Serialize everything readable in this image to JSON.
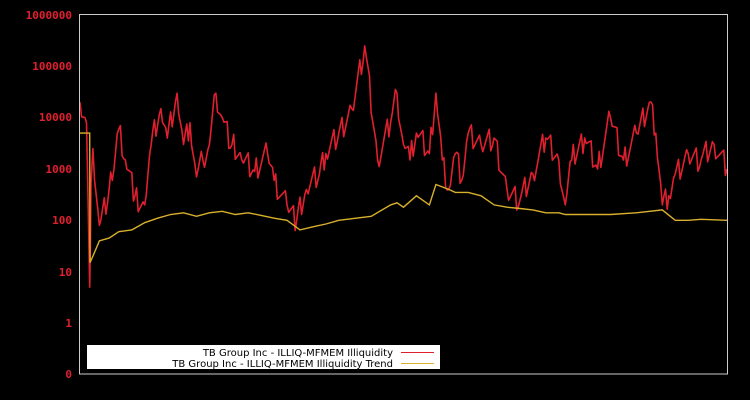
{
  "chart_data": {
    "type": "line",
    "title": "",
    "xlabel": "",
    "ylabel": "",
    "yscale": "log",
    "ylim": [
      0,
      1000000
    ],
    "y_tick_labels": [
      "1000000",
      "100000",
      "10000",
      "1000",
      "100",
      "10",
      "1",
      "0"
    ],
    "x_tick_labels": [],
    "grid": false,
    "legend_position": "lower-left",
    "colors": {
      "background": "#000000",
      "frame": "#cccccc",
      "tick_label": "#e0202e",
      "legend_bg": "#ffffff"
    },
    "series": [
      {
        "name": "TB Group Inc - ILLIQ-MFMEM Illiquidity",
        "color": "#e0202e",
        "x_fraction": [
          0.0,
          0.01,
          0.015,
          0.017,
          0.02,
          0.03,
          0.045,
          0.05,
          0.06,
          0.07,
          0.085,
          0.1,
          0.11,
          0.125,
          0.135,
          0.15,
          0.16,
          0.17,
          0.18,
          0.19,
          0.2,
          0.21,
          0.22,
          0.235,
          0.25,
          0.27,
          0.29,
          0.3,
          0.32,
          0.335,
          0.35,
          0.37,
          0.38,
          0.4,
          0.42,
          0.44,
          0.46,
          0.48,
          0.49,
          0.5,
          0.51,
          0.52,
          0.54,
          0.55,
          0.56,
          0.57,
          0.58,
          0.59,
          0.6,
          0.62,
          0.64,
          0.66,
          0.68,
          0.7,
          0.72,
          0.74,
          0.75,
          0.76,
          0.78,
          0.8,
          0.82,
          0.84,
          0.86,
          0.88,
          0.89,
          0.9,
          0.91,
          0.92,
          0.94,
          0.96,
          0.98,
          1.0
        ],
        "values": [
          20000,
          8000,
          5,
          500,
          2500,
          80,
          400,
          600,
          6000,
          1500,
          300,
          200,
          3000,
          15000,
          4000,
          30000,
          3000,
          8000,
          700,
          1500,
          3000,
          30000,
          10000,
          3000,
          1500,
          900,
          2000,
          600,
          200,
          100,
          400,
          800,
          2000,
          5000,
          15000,
          250000,
          1500,
          8000,
          30000,
          3000,
          1500,
          5000,
          2000,
          30000,
          1500,
          400,
          2000,
          600,
          5000,
          3000,
          4000,
          400,
          250,
          800,
          4000,
          1500,
          200,
          1500,
          4000,
          1000,
          10000,
          1500,
          5000,
          20000,
          5000,
          200,
          300,
          800,
          2000,
          1500,
          3000,
          1000
        ]
      },
      {
        "name": "TB Group Inc - ILLIQ-MFMEM Illiquidity Trend",
        "color": "#d8b02c",
        "x_fraction": [
          0.0,
          0.015,
          0.0155,
          0.02,
          0.03,
          0.045,
          0.06,
          0.08,
          0.1,
          0.12,
          0.14,
          0.16,
          0.18,
          0.2,
          0.22,
          0.24,
          0.26,
          0.28,
          0.3,
          0.32,
          0.34,
          0.36,
          0.38,
          0.4,
          0.45,
          0.48,
          0.49,
          0.5,
          0.52,
          0.54,
          0.55,
          0.57,
          0.58,
          0.6,
          0.62,
          0.64,
          0.66,
          0.68,
          0.7,
          0.72,
          0.74,
          0.75,
          0.78,
          0.82,
          0.86,
          0.9,
          0.92,
          0.94,
          0.96,
          1.0
        ],
        "values": [
          5000,
          5000,
          15,
          20,
          40,
          45,
          60,
          65,
          90,
          110,
          130,
          140,
          120,
          140,
          150,
          130,
          140,
          125,
          110,
          100,
          65,
          75,
          85,
          100,
          120,
          200,
          220,
          180,
          300,
          200,
          500,
          400,
          350,
          350,
          300,
          200,
          180,
          170,
          160,
          140,
          140,
          130,
          130,
          130,
          140,
          160,
          100,
          100,
          105,
          100
        ]
      }
    ]
  },
  "legend": {
    "items": [
      {
        "label": "TB Group Inc - ILLIQ-MFMEM Illiquidity",
        "color": "#e0202e"
      },
      {
        "label": "TB Group Inc - ILLIQ-MFMEM Illiquidity Trend",
        "color": "#d8b02c"
      }
    ]
  }
}
